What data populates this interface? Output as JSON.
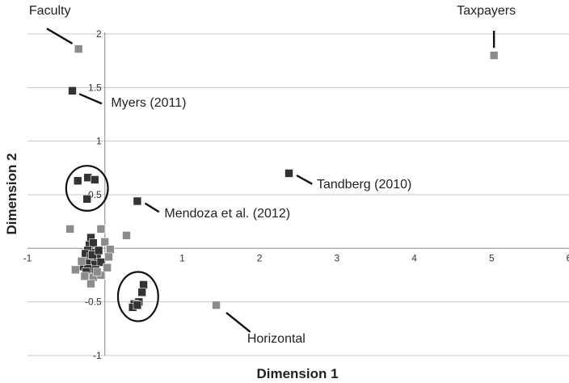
{
  "chart_data": {
    "type": "scatter",
    "title": "",
    "xlabel": "Dimension 1",
    "ylabel": "Dimension 2",
    "xlim": [
      -1,
      6
    ],
    "ylim": [
      -1,
      2
    ],
    "x_ticks": [
      "-1",
      "0",
      "1",
      "2",
      "3",
      "4",
      "5",
      "6"
    ],
    "y_ticks": [
      "-1",
      "-0.5",
      "0",
      "0.5",
      "1",
      "1.5",
      "2"
    ],
    "grid": "horizontal",
    "colors": {
      "dark": "#333333",
      "light": "#8c8c8c",
      "grid": "#c8c8c8",
      "axis": "#999999"
    },
    "series": [
      {
        "color": "#333333",
        "points": [
          [
            -0.42,
            1.47
          ],
          [
            0.42,
            0.44
          ],
          [
            2.38,
            0.7
          ],
          [
            -0.35,
            0.63
          ],
          [
            -0.22,
            0.66
          ],
          [
            -0.13,
            0.64
          ],
          [
            -0.23,
            0.46
          ],
          [
            0.5,
            -0.34
          ],
          [
            0.48,
            -0.41
          ],
          [
            0.44,
            -0.5
          ],
          [
            0.38,
            -0.52
          ],
          [
            0.36,
            -0.55
          ],
          [
            0.42,
            -0.53
          ],
          [
            -0.18,
            0.1
          ],
          [
            -0.2,
            0.03
          ],
          [
            -0.15,
            0.05
          ],
          [
            -0.22,
            -0.02
          ],
          [
            -0.12,
            -0.04
          ],
          [
            -0.25,
            -0.05
          ],
          [
            -0.18,
            -0.08
          ],
          [
            -0.1,
            -0.09
          ],
          [
            -0.28,
            -0.12
          ],
          [
            -0.2,
            -0.14
          ],
          [
            -0.13,
            -0.15
          ],
          [
            -0.3,
            -0.17
          ],
          [
            -0.22,
            -0.19
          ],
          [
            -0.05,
            -0.13
          ],
          [
            -0.16,
            -0.06
          ],
          [
            -0.08,
            -0.02
          ],
          [
            -0.24,
            -0.22
          ],
          [
            -0.12,
            -0.2
          ]
        ]
      },
      {
        "color": "#8c8c8c",
        "points": [
          [
            -0.34,
            1.86
          ],
          [
            5.03,
            1.8
          ],
          [
            1.44,
            -0.53
          ],
          [
            -0.45,
            0.18
          ],
          [
            -0.05,
            0.18
          ],
          [
            0.28,
            0.12
          ],
          [
            0.0,
            0.06
          ],
          [
            0.07,
            -0.01
          ],
          [
            -0.38,
            -0.2
          ],
          [
            -0.3,
            -0.12
          ],
          [
            -0.15,
            -0.27
          ],
          [
            -0.05,
            -0.25
          ],
          [
            0.03,
            -0.18
          ],
          [
            -0.18,
            -0.33
          ],
          [
            -0.26,
            -0.26
          ],
          [
            0.05,
            -0.08
          ],
          [
            -0.1,
            -0.22
          ]
        ]
      }
    ],
    "annotations": [
      {
        "text": "Faculty",
        "point": [
          -0.34,
          1.86
        ],
        "label_at": [
          -0.98,
          2.18
        ],
        "line_from": [
          -0.75,
          2.05
        ],
        "line_to": [
          -0.42,
          1.91
        ]
      },
      {
        "text": "Taxpayers",
        "point": [
          5.03,
          1.8
        ],
        "label_at": [
          4.55,
          2.18
        ],
        "line_from": [
          5.03,
          2.03
        ],
        "line_to": [
          5.03,
          1.87
        ]
      },
      {
        "text": "Myers (2011)",
        "point": [
          -0.42,
          1.47
        ],
        "label_at": [
          0.08,
          1.32
        ],
        "line_from": [
          -0.33,
          1.44
        ],
        "line_to": [
          -0.04,
          1.35
        ]
      },
      {
        "text": "Tandberg (2010)",
        "point": [
          2.38,
          0.7
        ],
        "label_at": [
          2.74,
          0.56
        ],
        "line_from": [
          2.48,
          0.68
        ],
        "line_to": [
          2.68,
          0.6
        ]
      },
      {
        "text": "Mendoza et al. (2012)",
        "point": [
          0.42,
          0.44
        ],
        "label_at": [
          0.77,
          0.29
        ],
        "line_from": [
          0.52,
          0.42
        ],
        "line_to": [
          0.7,
          0.34
        ]
      },
      {
        "text": "Horizontal",
        "point": [
          1.44,
          -0.53
        ],
        "label_at": [
          1.84,
          -0.88
        ],
        "line_from": [
          1.57,
          -0.6
        ],
        "line_to": [
          1.88,
          -0.78
        ]
      }
    ],
    "ellipses": [
      {
        "center": [
          -0.23,
          0.56
        ],
        "radius": [
          0.27,
          0.21
        ]
      },
      {
        "center": [
          0.43,
          -0.45
        ],
        "radius": [
          0.26,
          0.23
        ]
      }
    ]
  }
}
